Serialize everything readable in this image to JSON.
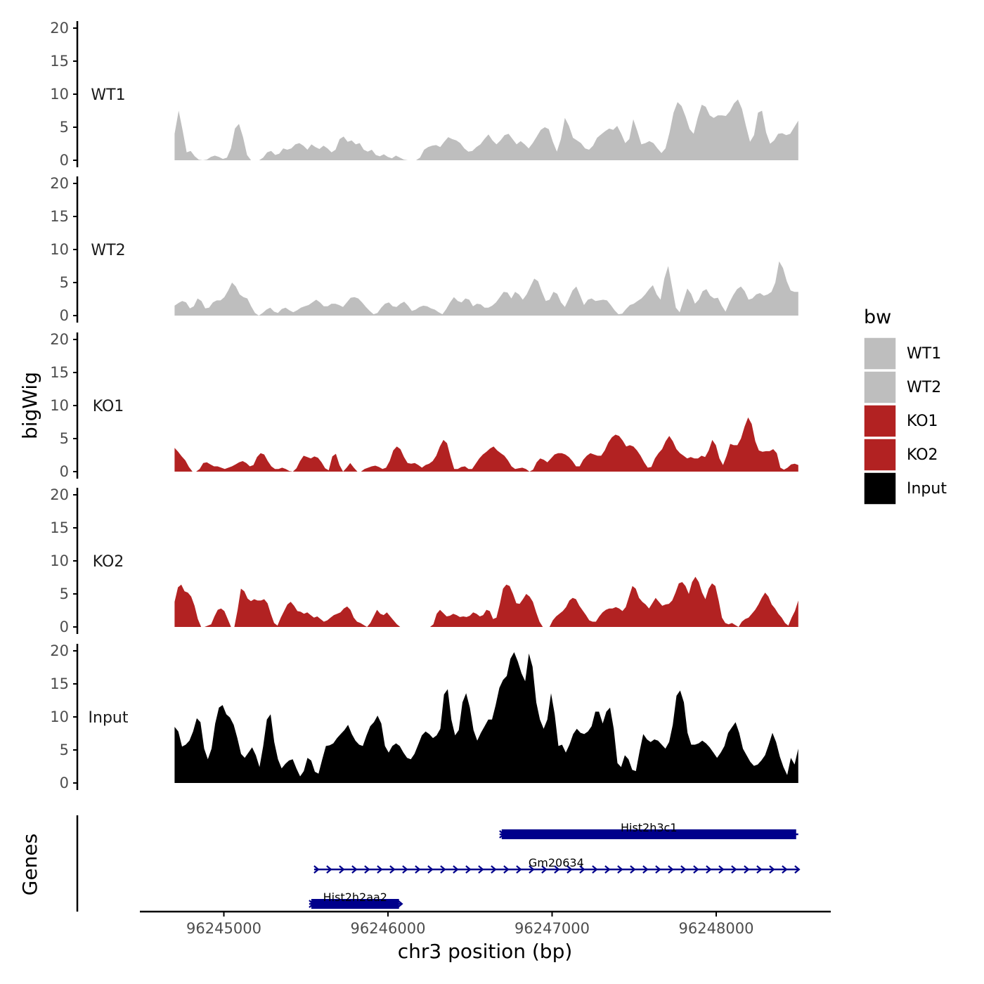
{
  "chart_data": {
    "type": "area",
    "xlabel": "chr3 position (bp)",
    "ylabel": "bigWig",
    "genes_label": "Genes",
    "xlim": [
      96244500,
      96248700
    ],
    "ylim": [
      0,
      20
    ],
    "x_ticks": [
      96245000,
      96246000,
      96247000,
      96248000
    ],
    "y_ticks": [
      0,
      5,
      10,
      15,
      20
    ],
    "track_start": 96244700,
    "track_end": 96248500,
    "legend": {
      "title": "bw",
      "position": "right",
      "entries": [
        {
          "label": "WT1",
          "color": "#bebebe"
        },
        {
          "label": "WT2",
          "color": "#bebebe"
        },
        {
          "label": "KO1",
          "color": "#b22222"
        },
        {
          "label": "KO2",
          "color": "#b22222"
        },
        {
          "label": "Input",
          "color": "#000000"
        }
      ]
    },
    "series": [
      {
        "name": "WT1",
        "color": "#bebebe",
        "values": [
          4.0,
          7.5,
          4.5,
          1.2,
          1.4,
          0.6,
          0.1,
          0.0,
          0.1,
          0.5,
          0.7,
          0.5,
          0.2,
          0.4,
          1.8,
          4.8,
          5.5,
          3.5,
          0.8,
          0.0,
          0.0,
          0.0,
          0.4,
          1.2,
          1.4,
          0.8,
          1.0,
          1.8,
          1.6,
          1.8,
          2.4,
          2.6,
          2.2,
          1.6,
          2.4,
          2.0,
          1.7,
          2.2,
          1.8,
          1.2,
          1.6,
          3.2,
          3.6,
          2.8,
          3.0,
          2.4,
          2.6,
          1.6,
          1.3,
          1.6,
          0.8,
          0.6,
          0.9,
          0.5,
          0.3,
          0.7,
          0.4,
          0.1,
          0.0,
          0.0,
          0.0,
          0.4,
          1.6,
          2.0,
          2.2,
          2.3,
          2.0,
          2.8,
          3.5,
          3.2,
          3.0,
          2.6,
          1.8,
          1.3,
          1.4,
          2.0,
          2.4,
          3.2,
          3.9,
          3.0,
          2.4,
          3.0,
          3.8,
          4.0,
          3.2,
          2.4,
          2.9,
          2.4,
          1.8,
          2.6,
          3.6,
          4.6,
          5.0,
          4.7,
          2.8,
          1.3,
          3.2,
          6.4,
          5.2,
          3.4,
          3.0,
          2.6,
          1.8,
          1.6,
          2.2,
          3.4,
          3.9,
          4.4,
          4.8,
          4.6,
          5.2,
          4.0,
          2.6,
          3.2,
          6.2,
          4.4,
          2.4,
          2.6,
          2.9,
          2.6,
          1.8,
          1.1,
          1.8,
          4.2,
          7.2,
          8.8,
          8.2,
          6.6,
          4.7,
          4.0,
          6.4,
          8.4,
          8.1,
          6.8,
          6.4,
          6.8,
          6.8,
          6.7,
          7.4,
          8.6,
          9.2,
          7.8,
          5.2,
          2.8,
          3.8,
          7.2,
          7.5,
          4.2,
          2.5,
          3.0,
          4.0,
          4.1,
          3.8,
          4.0,
          5.0,
          6.0
        ]
      },
      {
        "name": "WT2",
        "color": "#bebebe",
        "values": [
          1.5,
          1.9,
          2.2,
          2.0,
          1.1,
          1.4,
          2.6,
          2.2,
          1.1,
          1.2,
          2.0,
          2.3,
          2.3,
          2.8,
          3.8,
          5.0,
          4.4,
          3.2,
          2.8,
          2.6,
          1.4,
          0.4,
          0.0,
          0.4,
          0.9,
          1.2,
          0.6,
          0.4,
          1.0,
          1.2,
          0.8,
          0.5,
          0.8,
          1.2,
          1.4,
          1.6,
          2.0,
          2.4,
          2.0,
          1.4,
          1.4,
          1.8,
          1.8,
          1.6,
          1.3,
          2.0,
          2.7,
          2.8,
          2.6,
          2.0,
          1.3,
          0.7,
          0.2,
          0.4,
          1.2,
          1.8,
          2.0,
          1.4,
          1.3,
          1.8,
          2.1,
          1.5,
          0.7,
          0.9,
          1.3,
          1.5,
          1.4,
          1.1,
          0.9,
          0.5,
          0.2,
          1.0,
          2.0,
          2.8,
          2.2,
          2.0,
          2.6,
          2.4,
          1.4,
          1.8,
          1.7,
          1.2,
          1.2,
          1.5,
          2.0,
          2.8,
          3.6,
          3.5,
          2.6,
          3.6,
          3.2,
          2.4,
          3.2,
          4.4,
          5.6,
          5.2,
          3.6,
          2.2,
          2.4,
          3.6,
          3.3,
          2.0,
          1.3,
          2.5,
          3.8,
          4.4,
          3.0,
          1.6,
          2.4,
          2.6,
          2.2,
          2.3,
          2.4,
          2.3,
          1.6,
          0.8,
          0.2,
          0.3,
          1.0,
          1.6,
          1.8,
          2.2,
          2.6,
          3.2,
          4.0,
          4.6,
          3.2,
          2.4,
          5.6,
          7.5,
          4.4,
          1.2,
          0.5,
          2.3,
          4.1,
          3.3,
          1.8,
          2.4,
          3.7,
          4.0,
          3.0,
          2.6,
          2.7,
          1.5,
          0.6,
          2.0,
          3.1,
          4.0,
          4.4,
          3.7,
          2.4,
          2.6,
          3.2,
          3.4,
          3.0,
          3.2,
          3.6,
          5.0,
          8.2,
          7.2,
          5.2,
          3.8,
          3.6,
          3.6
        ]
      },
      {
        "name": "KO1",
        "color": "#b22222",
        "values": [
          3.6,
          3.0,
          2.3,
          1.7,
          0.7,
          0.0,
          0.0,
          0.4,
          1.3,
          1.4,
          1.1,
          0.8,
          0.8,
          0.6,
          0.4,
          0.6,
          0.8,
          1.1,
          1.4,
          1.6,
          1.3,
          0.8,
          1.0,
          2.2,
          2.8,
          2.6,
          1.6,
          0.8,
          0.4,
          0.4,
          0.6,
          0.4,
          0.1,
          0.0,
          0.5,
          1.6,
          2.4,
          2.2,
          2.0,
          2.3,
          2.1,
          1.4,
          0.5,
          0.2,
          2.3,
          2.7,
          1.0,
          0.0,
          0.6,
          1.3,
          0.6,
          0.0,
          0.0,
          0.4,
          0.6,
          0.8,
          0.9,
          0.7,
          0.4,
          0.6,
          1.6,
          3.2,
          3.8,
          3.4,
          2.2,
          1.3,
          1.2,
          1.3,
          1.0,
          0.6,
          1.0,
          1.2,
          1.6,
          2.4,
          3.8,
          4.8,
          4.3,
          2.2,
          0.4,
          0.4,
          0.7,
          0.8,
          0.4,
          0.4,
          1.2,
          2.0,
          2.6,
          3.0,
          3.5,
          3.8,
          3.2,
          2.8,
          2.4,
          1.7,
          0.8,
          0.4,
          0.5,
          0.6,
          0.4,
          0.0,
          0.3,
          1.4,
          2.0,
          1.8,
          1.4,
          2.0,
          2.6,
          2.8,
          2.8,
          2.6,
          2.2,
          1.6,
          0.8,
          0.8,
          1.8,
          2.4,
          2.8,
          2.6,
          2.4,
          2.4,
          3.2,
          4.4,
          5.2,
          5.6,
          5.4,
          4.7,
          3.8,
          4.0,
          3.8,
          3.2,
          2.4,
          1.4,
          0.6,
          0.7,
          2.0,
          2.8,
          3.4,
          4.6,
          5.4,
          4.6,
          3.4,
          2.8,
          2.4,
          2.0,
          2.2,
          2.0,
          2.0,
          2.4,
          2.2,
          3.2,
          4.8,
          4.0,
          2.0,
          1.0,
          2.4,
          4.2,
          4.0,
          4.0,
          5.0,
          6.8,
          8.2,
          7.2,
          4.6,
          3.2,
          3.0,
          3.1,
          3.1,
          3.4,
          2.8,
          0.6,
          0.3,
          0.6,
          1.1,
          1.2,
          1.0
        ]
      },
      {
        "name": "KO2",
        "color": "#b22222",
        "values": [
          3.8,
          6.0,
          6.4,
          5.4,
          5.2,
          4.6,
          3.2,
          1.2,
          0.0,
          0.0,
          0.2,
          0.4,
          1.6,
          2.6,
          2.8,
          2.4,
          1.2,
          0.0,
          0.0,
          2.6,
          5.8,
          5.4,
          4.3,
          3.9,
          4.2,
          4.0,
          4.0,
          4.2,
          3.6,
          2.0,
          0.6,
          0.2,
          1.4,
          2.4,
          3.4,
          3.8,
          3.2,
          2.4,
          2.3,
          2.0,
          2.2,
          1.8,
          1.4,
          1.6,
          1.2,
          0.8,
          1.0,
          1.4,
          1.8,
          2.0,
          2.2,
          2.8,
          3.1,
          2.6,
          1.4,
          0.8,
          0.6,
          0.3,
          0.0,
          0.6,
          1.6,
          2.6,
          2.0,
          1.8,
          2.2,
          1.6,
          1.0,
          0.4,
          0.0,
          0.0,
          0.0,
          0.0,
          0.0,
          0.0,
          0.0,
          0.0,
          0.0,
          0.0,
          0.4,
          2.0,
          2.6,
          2.1,
          1.6,
          1.7,
          2.0,
          1.8,
          1.5,
          1.6,
          1.5,
          1.7,
          2.2,
          2.0,
          1.6,
          1.8,
          2.6,
          2.4,
          1.2,
          1.4,
          3.4,
          5.8,
          6.4,
          6.2,
          5.0,
          3.6,
          3.5,
          4.2,
          5.0,
          4.6,
          3.8,
          2.2,
          0.8,
          0.0,
          0.0,
          0.0,
          1.0,
          1.6,
          2.0,
          2.4,
          3.0,
          4.0,
          4.4,
          4.2,
          3.2,
          2.5,
          1.8,
          1.0,
          0.8,
          0.8,
          1.6,
          2.2,
          2.6,
          2.8,
          2.8,
          3.0,
          2.8,
          2.4,
          3.0,
          4.6,
          6.2,
          5.8,
          4.4,
          3.8,
          3.4,
          2.8,
          3.6,
          4.4,
          3.8,
          3.2,
          3.4,
          3.5,
          4.0,
          5.2,
          6.6,
          6.8,
          6.2,
          5.0,
          6.8,
          7.6,
          6.8,
          5.2,
          4.2,
          5.8,
          6.6,
          6.2,
          4.0,
          1.4,
          0.6,
          0.4,
          0.6,
          0.3,
          0.0,
          0.8,
          1.2,
          1.4,
          2.0,
          2.6,
          3.4,
          4.4,
          5.2,
          4.6,
          3.4,
          2.8,
          2.0,
          1.4,
          0.6,
          0.2,
          1.4,
          2.4,
          4.0
        ]
      },
      {
        "name": "Input",
        "color": "#000000",
        "values": [
          8.5,
          7.8,
          5.5,
          5.8,
          6.4,
          7.8,
          9.8,
          9.2,
          5.2,
          3.6,
          5.2,
          9.0,
          11.4,
          11.8,
          10.4,
          9.9,
          8.8,
          6.8,
          4.4,
          3.8,
          4.6,
          5.4,
          4.2,
          2.4,
          5.6,
          9.6,
          10.4,
          6.2,
          3.6,
          2.2,
          2.9,
          3.4,
          3.6,
          2.2,
          1.0,
          1.8,
          3.8,
          3.4,
          1.7,
          1.4,
          3.6,
          5.6,
          5.7,
          6.0,
          6.8,
          7.4,
          8.0,
          8.8,
          7.4,
          6.4,
          5.8,
          5.6,
          7.2,
          8.6,
          9.2,
          10.2,
          9.0,
          5.6,
          4.6,
          5.6,
          6.0,
          5.6,
          4.6,
          3.8,
          3.6,
          4.4,
          5.8,
          7.2,
          7.8,
          7.4,
          6.8,
          7.2,
          8.2,
          13.4,
          14.2,
          9.6,
          7.2,
          8.0,
          12.2,
          13.6,
          11.4,
          8.0,
          6.4,
          7.6,
          8.6,
          9.6,
          9.6,
          11.8,
          14.4,
          15.6,
          16.2,
          18.8,
          19.8,
          18.4,
          16.6,
          15.4,
          19.6,
          17.6,
          12.2,
          9.6,
          8.2,
          9.6,
          13.6,
          10.4,
          5.6,
          5.8,
          4.6,
          5.8,
          7.4,
          8.2,
          7.6,
          7.4,
          7.8,
          8.6,
          10.8,
          10.8,
          9.0,
          10.8,
          11.4,
          8.2,
          3.0,
          2.4,
          4.2,
          3.6,
          2.0,
          1.8,
          4.8,
          7.4,
          6.6,
          6.2,
          6.6,
          6.4,
          5.8,
          5.2,
          6.2,
          8.8,
          13.2,
          14.0,
          12.2,
          7.6,
          5.8,
          5.8,
          6.0,
          6.4,
          6.0,
          5.4,
          4.6,
          3.8,
          4.6,
          5.6,
          7.6,
          8.4,
          9.2,
          7.6,
          5.2,
          4.2,
          3.2,
          2.6,
          2.8,
          3.4,
          4.2,
          5.8,
          7.6,
          6.2,
          4.0,
          2.4,
          1.2,
          3.8,
          2.8,
          5.2
        ]
      }
    ],
    "genes": [
      {
        "name": "Hist2h3c1",
        "start": 96246680,
        "end": 96248500,
        "strand": "+",
        "color": "#00008b"
      },
      {
        "name": "Gm20634",
        "start": 96245550,
        "end": 96248500,
        "strand": "+",
        "color": "#00008b"
      },
      {
        "name": "Hist2h2aa2",
        "start": 96245520,
        "end": 96246080,
        "strand": "+",
        "color": "#00008b"
      }
    ]
  }
}
